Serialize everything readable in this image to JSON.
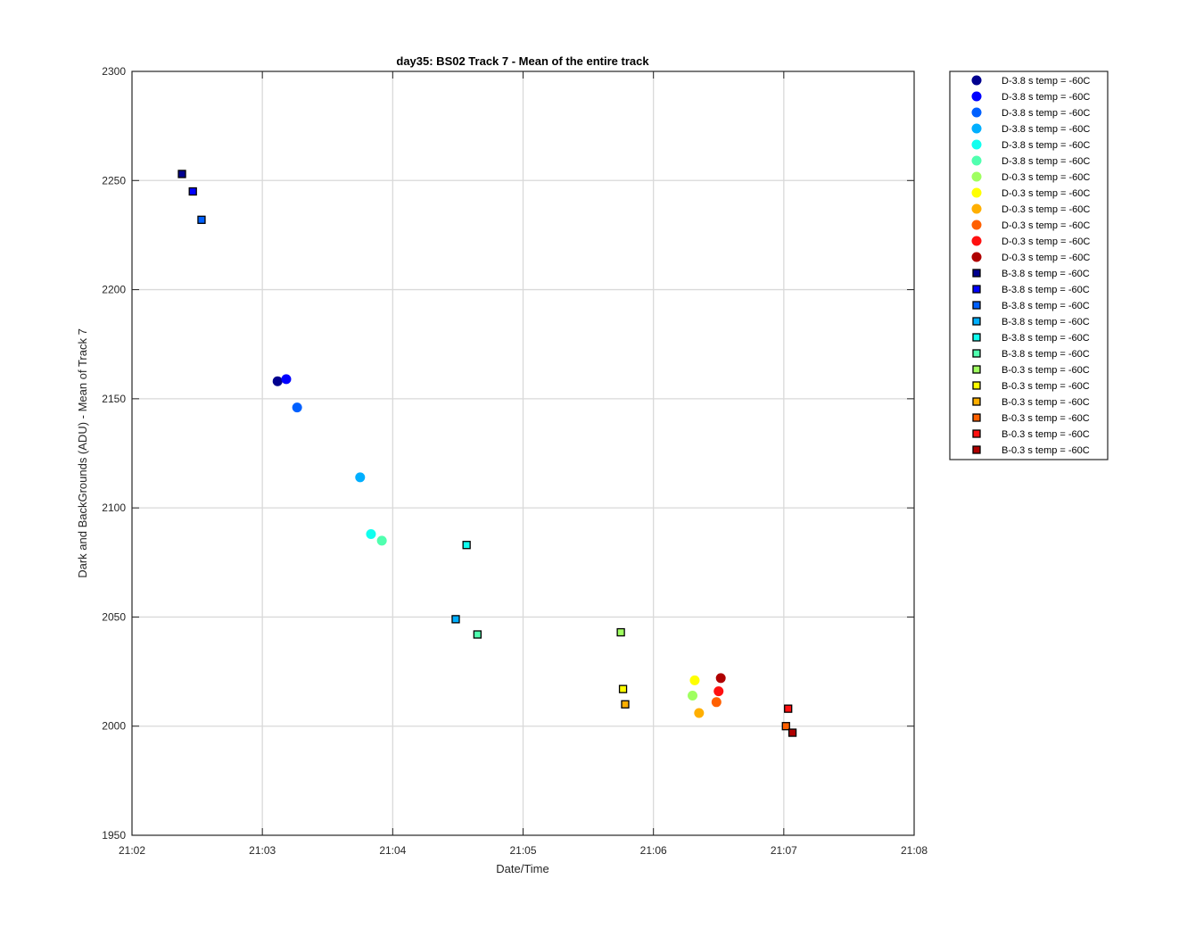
{
  "chart_data": {
    "type": "scatter",
    "title": "day35: BS02  Track 7 - Mean of the entire track",
    "xlabel": "Date/Time",
    "ylabel": "Dark and BackGrounds (ADU) - Mean of Track 7",
    "xlim": [
      "21:02",
      "21:08"
    ],
    "ylim": [
      1950,
      2300
    ],
    "xticks": [
      "21:02",
      "21:03",
      "21:04",
      "21:05",
      "21:06",
      "21:07",
      "21:08"
    ],
    "yticks": [
      1950,
      2000,
      2050,
      2100,
      2150,
      2200,
      2250,
      2300
    ],
    "grid": true,
    "legend_position": "outside-top-right",
    "series": [
      {
        "name": "D-3.8 s temp = -60C",
        "marker": "circle",
        "color": "#00008F",
        "points": [
          [
            "21:03:07",
            2158
          ]
        ]
      },
      {
        "name": "D-3.8 s temp = -60C",
        "marker": "circle",
        "color": "#0000FF",
        "points": [
          [
            "21:03:11",
            2159
          ]
        ]
      },
      {
        "name": "D-3.8 s temp = -60C",
        "marker": "circle",
        "color": "#0060FF",
        "points": [
          [
            "21:03:16",
            2146
          ]
        ]
      },
      {
        "name": "D-3.8 s temp = -60C",
        "marker": "circle",
        "color": "#00AFFF",
        "points": [
          [
            "21:03:45",
            2114
          ]
        ]
      },
      {
        "name": "D-3.8 s temp = -60C",
        "marker": "circle",
        "color": "#10FFEF",
        "points": [
          [
            "21:03:50",
            2088
          ]
        ]
      },
      {
        "name": "D-3.8 s temp = -60C",
        "marker": "circle",
        "color": "#50FFAF",
        "points": [
          [
            "21:03:55",
            2085
          ]
        ]
      },
      {
        "name": "D-0.3 s temp = -60C",
        "marker": "circle",
        "color": "#9FFF60",
        "points": [
          [
            "21:06:18",
            2014
          ]
        ]
      },
      {
        "name": "D-0.3 s temp = -60C",
        "marker": "circle",
        "color": "#FFFF00",
        "points": [
          [
            "21:06:19",
            2021
          ]
        ]
      },
      {
        "name": "D-0.3 s temp = -60C",
        "marker": "circle",
        "color": "#FFAF00",
        "points": [
          [
            "21:06:21",
            2006
          ]
        ]
      },
      {
        "name": "D-0.3 s temp = -60C",
        "marker": "circle",
        "color": "#FF6000",
        "points": [
          [
            "21:06:29",
            2011
          ]
        ]
      },
      {
        "name": "D-0.3 s temp = -60C",
        "marker": "circle",
        "color": "#FF1010",
        "points": [
          [
            "21:06:30",
            2016
          ]
        ]
      },
      {
        "name": "D-0.3 s temp = -60C",
        "marker": "circle",
        "color": "#AF0000",
        "points": [
          [
            "21:06:31",
            2022
          ]
        ]
      },
      {
        "name": "B-3.8 s temp = -60C",
        "marker": "square",
        "color": "#00008F",
        "points": [
          [
            "21:02:23",
            2253
          ]
        ]
      },
      {
        "name": "B-3.8 s temp = -60C",
        "marker": "square",
        "color": "#0000FF",
        "points": [
          [
            "21:02:28",
            2245
          ]
        ]
      },
      {
        "name": "B-3.8 s temp = -60C",
        "marker": "square",
        "color": "#0060FF",
        "points": [
          [
            "21:02:32",
            2232
          ]
        ]
      },
      {
        "name": "B-3.8 s temp = -60C",
        "marker": "square",
        "color": "#00AFFF",
        "points": [
          [
            "21:04:29",
            2049
          ]
        ]
      },
      {
        "name": "B-3.8 s temp = -60C",
        "marker": "square",
        "color": "#10FFEF",
        "points": [
          [
            "21:04:34",
            2083
          ]
        ]
      },
      {
        "name": "B-3.8 s temp = -60C",
        "marker": "square",
        "color": "#50FFAF",
        "points": [
          [
            "21:04:39",
            2042
          ]
        ]
      },
      {
        "name": "B-0.3 s temp = -60C",
        "marker": "square",
        "color": "#9FFF60",
        "points": [
          [
            "21:05:45",
            2043
          ]
        ]
      },
      {
        "name": "B-0.3 s temp = -60C",
        "marker": "square",
        "color": "#FFFF00",
        "points": [
          [
            "21:05:46",
            2017
          ]
        ]
      },
      {
        "name": "B-0.3 s temp = -60C",
        "marker": "square",
        "color": "#FFAF00",
        "points": [
          [
            "21:05:47",
            2010
          ]
        ]
      },
      {
        "name": "B-0.3 s temp = -60C",
        "marker": "square",
        "color": "#FF6000",
        "points": [
          [
            "21:07:01",
            2000
          ]
        ]
      },
      {
        "name": "B-0.3 s temp = -60C",
        "marker": "square",
        "color": "#FF1010",
        "points": [
          [
            "21:07:02",
            2008
          ]
        ]
      },
      {
        "name": "B-0.3 s temp = -60C",
        "marker": "square",
        "color": "#AF0000",
        "points": [
          [
            "21:07:04",
            1997
          ]
        ]
      }
    ]
  }
}
